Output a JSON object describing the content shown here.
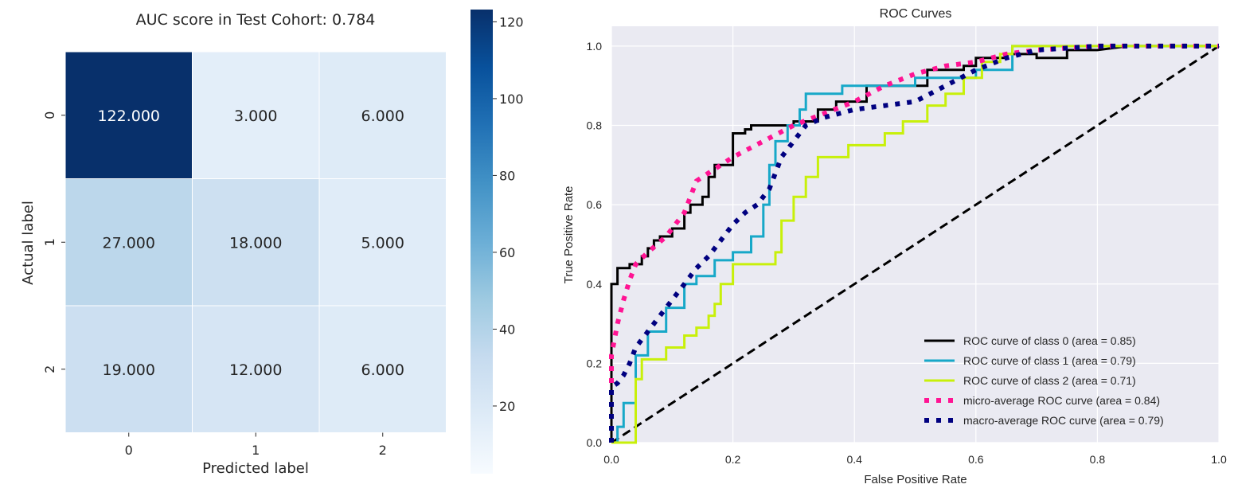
{
  "chart_data": [
    {
      "type": "heatmap",
      "title": "AUC score in Test Cohort: 0.784",
      "xlabel": "Predicted label",
      "ylabel": "Actual label",
      "x_ticks": [
        "0",
        "1",
        "2"
      ],
      "y_ticks": [
        "0",
        "1",
        "2"
      ],
      "cell_labels": [
        [
          "122.000",
          "3.000",
          "6.000"
        ],
        [
          "27.000",
          "18.000",
          "5.000"
        ],
        [
          "19.000",
          "12.000",
          "6.000"
        ]
      ],
      "values": [
        [
          122,
          3,
          6
        ],
        [
          27,
          18,
          5
        ],
        [
          19,
          12,
          6
        ]
      ],
      "colorbar": {
        "min": 3,
        "max": 122,
        "ticks": [
          "20",
          "40",
          "60",
          "80",
          "100",
          "120"
        ],
        "tick_values": [
          20,
          40,
          60,
          80,
          100,
          120
        ]
      },
      "colormap": "Blues"
    },
    {
      "type": "line",
      "title": "ROC Curves",
      "xlabel": "False Positive Rate",
      "ylabel": "True Positive Rate",
      "xlim": [
        0,
        1
      ],
      "ylim": [
        0,
        1.05
      ],
      "x_ticks": [
        "0.0",
        "0.2",
        "0.4",
        "0.6",
        "0.8",
        "1.0"
      ],
      "x_tick_values": [
        0,
        0.2,
        0.4,
        0.6,
        0.8,
        1.0
      ],
      "y_ticks": [
        "0.0",
        "0.2",
        "0.4",
        "0.6",
        "0.8",
        "1.0"
      ],
      "y_tick_values": [
        0,
        0.2,
        0.4,
        0.6,
        0.8,
        1.0
      ],
      "grid": true,
      "legend_position": "lower-right",
      "series": [
        {
          "name": "ROC curve of class 0 (area = 0.85)",
          "color": "#000000",
          "style": "solid",
          "x": [
            0,
            0,
            0.01,
            0.01,
            0.03,
            0.03,
            0.05,
            0.05,
            0.06,
            0.06,
            0.07,
            0.07,
            0.08,
            0.08,
            0.1,
            0.1,
            0.12,
            0.12,
            0.13,
            0.13,
            0.15,
            0.15,
            0.16,
            0.16,
            0.17,
            0.17,
            0.2,
            0.2,
            0.22,
            0.22,
            0.23,
            0.23,
            0.3,
            0.3,
            0.34,
            0.34,
            0.37,
            0.37,
            0.42,
            0.42,
            0.52,
            0.52,
            0.58,
            0.58,
            0.6,
            0.6,
            0.65,
            0.65,
            0.7,
            0.7,
            0.75,
            0.75,
            0.8,
            0.8,
            0.85,
            1.0
          ],
          "y": [
            0,
            0.4,
            0.4,
            0.44,
            0.44,
            0.45,
            0.45,
            0.47,
            0.47,
            0.49,
            0.49,
            0.51,
            0.51,
            0.52,
            0.52,
            0.54,
            0.54,
            0.58,
            0.58,
            0.6,
            0.6,
            0.62,
            0.62,
            0.67,
            0.67,
            0.7,
            0.7,
            0.78,
            0.78,
            0.79,
            0.79,
            0.8,
            0.8,
            0.81,
            0.81,
            0.84,
            0.84,
            0.86,
            0.86,
            0.9,
            0.9,
            0.94,
            0.94,
            0.95,
            0.95,
            0.97,
            0.97,
            0.98,
            0.98,
            0.97,
            0.97,
            0.99,
            0.99,
            0.99,
            1.0,
            1.0
          ]
        },
        {
          "name": "ROC curve of class 1 (area = 0.79)",
          "color": "#17a8c8",
          "style": "solid",
          "x": [
            0,
            0.01,
            0.01,
            0.02,
            0.02,
            0.04,
            0.04,
            0.06,
            0.06,
            0.09,
            0.09,
            0.12,
            0.12,
            0.14,
            0.14,
            0.17,
            0.17,
            0.2,
            0.2,
            0.23,
            0.23,
            0.25,
            0.25,
            0.26,
            0.26,
            0.27,
            0.27,
            0.29,
            0.29,
            0.31,
            0.31,
            0.32,
            0.32,
            0.38,
            0.38,
            0.5,
            0.5,
            0.6,
            0.6,
            0.66,
            0.66,
            0.73,
            0.73,
            1.0
          ],
          "y": [
            0,
            0,
            0.04,
            0.04,
            0.1,
            0.1,
            0.22,
            0.22,
            0.28,
            0.28,
            0.34,
            0.34,
            0.4,
            0.4,
            0.42,
            0.42,
            0.46,
            0.46,
            0.48,
            0.48,
            0.52,
            0.52,
            0.6,
            0.6,
            0.7,
            0.7,
            0.76,
            0.76,
            0.8,
            0.8,
            0.84,
            0.84,
            0.88,
            0.88,
            0.9,
            0.9,
            0.92,
            0.92,
            0.94,
            0.94,
            1.0,
            1.0,
            1.0,
            1.0
          ]
        },
        {
          "name": "ROC curve of class 2 (area = 0.71)",
          "color": "#c8f00a",
          "style": "solid",
          "x": [
            0,
            0.04,
            0.04,
            0.05,
            0.05,
            0.09,
            0.09,
            0.12,
            0.12,
            0.14,
            0.14,
            0.16,
            0.16,
            0.17,
            0.17,
            0.18,
            0.18,
            0.2,
            0.2,
            0.27,
            0.27,
            0.28,
            0.28,
            0.3,
            0.3,
            0.32,
            0.32,
            0.34,
            0.34,
            0.39,
            0.39,
            0.45,
            0.45,
            0.48,
            0.48,
            0.52,
            0.52,
            0.55,
            0.55,
            0.58,
            0.58,
            0.61,
            0.61,
            0.64,
            0.64,
            0.66,
            0.66,
            0.7,
            0.7,
            1.0
          ],
          "y": [
            0,
            0,
            0.16,
            0.16,
            0.21,
            0.21,
            0.24,
            0.24,
            0.27,
            0.27,
            0.29,
            0.29,
            0.32,
            0.32,
            0.35,
            0.35,
            0.4,
            0.4,
            0.45,
            0.45,
            0.48,
            0.48,
            0.56,
            0.56,
            0.62,
            0.62,
            0.67,
            0.67,
            0.72,
            0.72,
            0.75,
            0.75,
            0.78,
            0.78,
            0.81,
            0.81,
            0.85,
            0.85,
            0.88,
            0.88,
            0.92,
            0.92,
            0.96,
            0.96,
            0.98,
            0.98,
            1.0,
            1.0,
            1.0,
            1.0
          ]
        },
        {
          "name": "micro-average ROC curve (area = 0.84)",
          "color": "#ff1493",
          "style": "dotted",
          "x": [
            0,
            0,
            0.01,
            0.02,
            0.03,
            0.04,
            0.06,
            0.09,
            0.12,
            0.14,
            0.16,
            0.2,
            0.25,
            0.3,
            0.35,
            0.4,
            0.45,
            0.5,
            0.55,
            0.6,
            0.65,
            0.7,
            0.8,
            0.9,
            1.0
          ],
          "y": [
            0,
            0.22,
            0.3,
            0.36,
            0.41,
            0.45,
            0.48,
            0.52,
            0.58,
            0.66,
            0.68,
            0.72,
            0.76,
            0.8,
            0.83,
            0.86,
            0.9,
            0.93,
            0.95,
            0.96,
            0.98,
            0.99,
            1.0,
            1.0,
            1.0
          ]
        },
        {
          "name": "macro-average ROC curve (area = 0.79)",
          "color": "#000080",
          "style": "dotted",
          "x": [
            0,
            0,
            0.01,
            0.02,
            0.03,
            0.04,
            0.06,
            0.08,
            0.1,
            0.12,
            0.14,
            0.16,
            0.18,
            0.2,
            0.22,
            0.24,
            0.26,
            0.28,
            0.3,
            0.32,
            0.35,
            0.4,
            0.45,
            0.5,
            0.55,
            0.6,
            0.65,
            0.7,
            0.8,
            1.0
          ],
          "y": [
            0,
            0.14,
            0.15,
            0.17,
            0.2,
            0.24,
            0.28,
            0.32,
            0.36,
            0.4,
            0.44,
            0.47,
            0.51,
            0.55,
            0.58,
            0.6,
            0.64,
            0.72,
            0.76,
            0.8,
            0.82,
            0.84,
            0.85,
            0.86,
            0.9,
            0.94,
            0.97,
            0.99,
            1.0,
            1.0
          ]
        }
      ],
      "reference_line": {
        "x": [
          0,
          1
        ],
        "y": [
          0,
          1
        ],
        "color": "#000000",
        "style": "dashed"
      }
    }
  ]
}
